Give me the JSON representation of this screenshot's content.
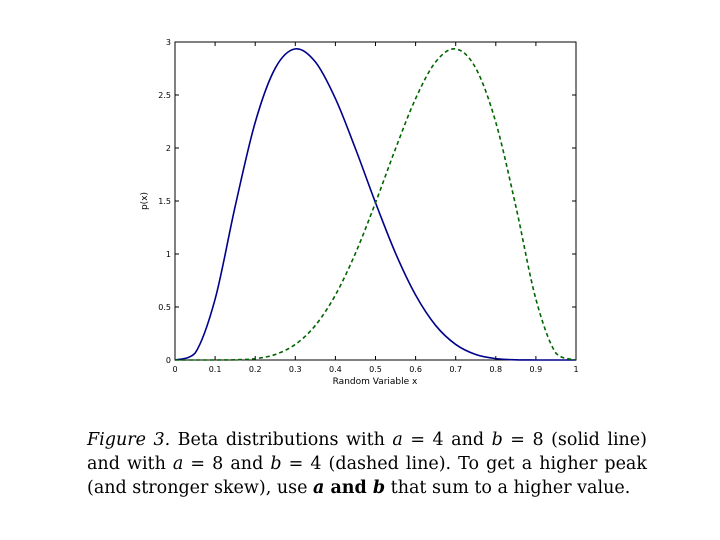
{
  "chart_data": {
    "type": "line",
    "xlabel": "Random Variable x",
    "ylabel": "p(x)",
    "xlim": [
      0,
      1
    ],
    "ylim": [
      0,
      3
    ],
    "xticks": [
      "0",
      "0.1",
      "0.2",
      "0.3",
      "0.4",
      "0.5",
      "0.6",
      "0.7",
      "0.8",
      "0.9",
      "1"
    ],
    "yticks": [
      "0",
      "0.5",
      "1",
      "1.5",
      "2",
      "2.5",
      "3"
    ],
    "grid": false,
    "series": [
      {
        "style": "solid",
        "color": "#00008b",
        "x": [
          0.0,
          0.05,
          0.1,
          0.15,
          0.2,
          0.25,
          0.3,
          0.35,
          0.4,
          0.45,
          0.5,
          0.55,
          0.6,
          0.65,
          0.7,
          0.75,
          0.8,
          0.85,
          0.9,
          0.95,
          1.0
        ],
        "y": [
          0.0,
          0.064,
          0.574,
          1.449,
          2.242,
          2.753,
          2.935,
          2.812,
          2.466,
          1.994,
          1.484,
          1.007,
          0.613,
          0.326,
          0.147,
          0.052,
          0.013,
          0.002,
          0.0,
          0.0,
          0.0
        ]
      },
      {
        "style": "dashed",
        "color": "#006400",
        "x": [
          0.0,
          0.05,
          0.1,
          0.15,
          0.2,
          0.25,
          0.3,
          0.35,
          0.4,
          0.45,
          0.5,
          0.55,
          0.6,
          0.65,
          0.7,
          0.75,
          0.8,
          0.85,
          0.9,
          0.95,
          1.0
        ],
        "y": [
          0.0,
          0.0,
          0.0,
          0.002,
          0.013,
          0.052,
          0.147,
          0.326,
          0.613,
          1.007,
          1.484,
          1.994,
          2.466,
          2.812,
          2.935,
          2.753,
          2.242,
          1.449,
          0.574,
          0.064,
          0.0
        ]
      }
    ]
  },
  "caption": {
    "lead": "Figure 3.",
    "t1": " Beta distributions with ",
    "a": "a",
    "eq1": " = 4 and ",
    "b": "b",
    "eq2": " = 8 (solid line) and with ",
    "a2": "a",
    "eq3": " = 8 and ",
    "b2": "b",
    "eq4": " = 4 (dashed line).  To get a higher peak (and stronger skew), use ",
    "a3": "a",
    "and": " and ",
    "b3": "b",
    "that": " that sum to a higher value."
  }
}
